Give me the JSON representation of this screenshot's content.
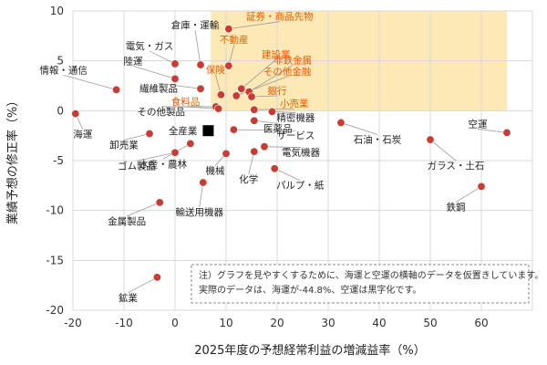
{
  "chart_data": {
    "type": "scatter",
    "xlabel": "2025年度の予想経常利益の増減益率（%）",
    "ylabel": "業績予想の修正率（%）",
    "xlim": [
      -20,
      70
    ],
    "ylim": [
      -20,
      10
    ],
    "x_ticks": [
      -20,
      -10,
      0,
      10,
      20,
      30,
      40,
      50,
      60
    ],
    "y_ticks": [
      10,
      5,
      0,
      -5,
      -10,
      -15,
      -20
    ],
    "grid": true,
    "highlight_region": {
      "x_from": 7,
      "x_to": 65,
      "y_from": 0,
      "y_to": 10,
      "color": "#fce9b5"
    },
    "colors": {
      "point": "#c83c34",
      "highlight_label": "#e85a00",
      "label": "#222222",
      "leader": "#999999",
      "market": "#000000"
    },
    "market_marker": {
      "name": "全産業",
      "x": 6.5,
      "y": -2.0
    },
    "points": [
      {
        "name": "情報・通信",
        "x": -11.5,
        "y": 2.1,
        "highlight": false
      },
      {
        "name": "海運",
        "x": -19.5,
        "y": -0.3,
        "highlight": false
      },
      {
        "name": "卸売業",
        "x": -5.0,
        "y": -2.3,
        "highlight": false
      },
      {
        "name": "ゴム製品",
        "x": 0.0,
        "y": -4.2,
        "highlight": false
      },
      {
        "name": "金属製品",
        "x": -3.0,
        "y": -9.2,
        "highlight": false
      },
      {
        "name": "鉱業",
        "x": -3.5,
        "y": -16.7,
        "highlight": false
      },
      {
        "name": "電気・ガス",
        "x": 0.0,
        "y": 4.7,
        "highlight": false
      },
      {
        "name": "陸運",
        "x": 0.0,
        "y": 3.2,
        "highlight": false
      },
      {
        "name": "繊維製品",
        "x": 5.0,
        "y": 2.2,
        "highlight": false
      },
      {
        "name": "倉庫・運輸",
        "x": 5.0,
        "y": 4.6,
        "highlight": false
      },
      {
        "name": "水産・農林",
        "x": 3.0,
        "y": -3.3,
        "highlight": false
      },
      {
        "name": "輸送用機器",
        "x": 5.5,
        "y": -7.2,
        "highlight": false
      },
      {
        "name": "機械",
        "x": 10.0,
        "y": -4.3,
        "highlight": false
      },
      {
        "name": "その他製品",
        "x": 8.0,
        "y": 0.4,
        "highlight": false
      },
      {
        "name": "証券・商品先物",
        "x": 10.5,
        "y": 8.2,
        "highlight": true
      },
      {
        "name": "不動産",
        "x": 10.5,
        "y": 4.5,
        "highlight": true
      },
      {
        "name": "保険",
        "x": 9.0,
        "y": 1.6,
        "highlight": true
      },
      {
        "name": "建設業",
        "x": 13.0,
        "y": 2.2,
        "highlight": true
      },
      {
        "name": "非鉄金属",
        "x": 14.5,
        "y": 1.9,
        "highlight": true
      },
      {
        "name": "その他金融",
        "x": 12.0,
        "y": 1.5,
        "highlight": true
      },
      {
        "name": "銀行",
        "x": 15.0,
        "y": 1.4,
        "highlight": true
      },
      {
        "name": "食料品",
        "x": 8.5,
        "y": 0.2,
        "highlight": true
      },
      {
        "name": "小売業",
        "x": 15.5,
        "y": 0.1,
        "highlight": true
      },
      {
        "name": "精密機器",
        "x": 19.0,
        "y": -0.1,
        "highlight": false
      },
      {
        "name": "医薬品",
        "x": 15.5,
        "y": -1.0,
        "highlight": false
      },
      {
        "name": "サービス",
        "x": 11.5,
        "y": -1.9,
        "highlight": false
      },
      {
        "name": "電気機器",
        "x": 17.5,
        "y": -3.6,
        "highlight": false
      },
      {
        "name": "化学",
        "x": 15.5,
        "y": -4.1,
        "highlight": false
      },
      {
        "name": "パルプ・紙",
        "x": 19.5,
        "y": -5.8,
        "highlight": false
      },
      {
        "name": "石油・石炭",
        "x": 32.5,
        "y": -1.2,
        "highlight": false
      },
      {
        "name": "ガラス・土石",
        "x": 50.0,
        "y": -2.9,
        "highlight": false
      },
      {
        "name": "鉄鋼",
        "x": 60.0,
        "y": -7.6,
        "highlight": false
      },
      {
        "name": "空運",
        "x": 65.0,
        "y": -2.2,
        "highlight": false
      }
    ],
    "note_lines": [
      "注）グラフを見やすくするために、海運と空運の横軸のデータを仮置きしています。",
      "実際のデータは、海運が-44.8%、空運は黒字化です。"
    ]
  }
}
